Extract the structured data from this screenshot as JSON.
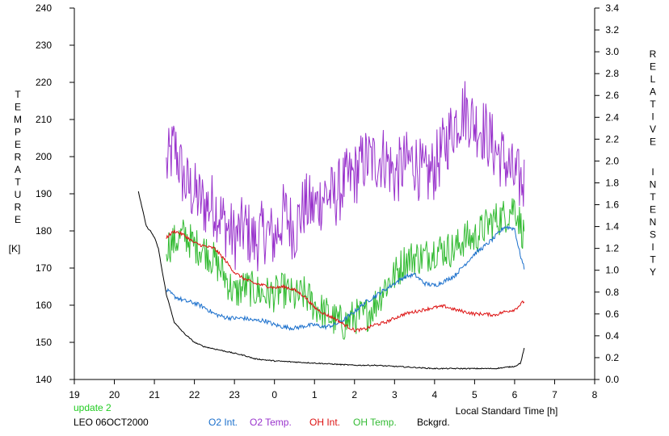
{
  "chart_data": {
    "type": "line",
    "x_axis": {
      "label": "Local Standard Time [h]",
      "range": [
        19,
        32
      ],
      "ticks": [
        19,
        20,
        21,
        22,
        23,
        24,
        25,
        26,
        27,
        28,
        29,
        30,
        31,
        32
      ],
      "tick_labels": [
        "19",
        "20",
        "21",
        "22",
        "23",
        "0",
        "1",
        "2",
        "3",
        "4",
        "5",
        "6",
        "7",
        "8"
      ]
    },
    "y_left": {
      "label_letters": [
        "T",
        "E",
        "M",
        "P",
        "E",
        "R",
        "A",
        "T",
        "U",
        "R",
        "E"
      ],
      "unit": "[K]",
      "range": [
        140,
        240
      ],
      "ticks": [
        140,
        150,
        160,
        170,
        180,
        190,
        200,
        210,
        220,
        230,
        240
      ]
    },
    "y_right": {
      "label_word1": [
        "R",
        "E",
        "L",
        "A",
        "T",
        "I",
        "V",
        "E"
      ],
      "label_word2": [
        "I",
        "N",
        "T",
        "E",
        "N",
        "S",
        "I",
        "T",
        "Y"
      ],
      "range": [
        0,
        3.4
      ],
      "ticks": [
        "0.0",
        "0.2",
        "0.4",
        "0.6",
        "0.8",
        "1.0",
        "1.2",
        "1.4",
        "1.6",
        "1.8",
        "2.0",
        "2.2",
        "2.4",
        "2.6",
        "2.8",
        "3.0",
        "3.2",
        "3.4"
      ]
    },
    "footer": {
      "update": "update 2",
      "station": "LEO 06OCT2000"
    },
    "legend": [
      "O2 Int.",
      "O2 Temp.",
      "OH Int.",
      "OH Temp.",
      "Bckgrd."
    ],
    "grid": false,
    "series": [
      {
        "name": "O2 Temp.",
        "axis": "left",
        "color": "#9933cc",
        "x": [
          21.3,
          21.5,
          21.75,
          22.0,
          22.25,
          22.5,
          22.75,
          23.0,
          23.25,
          23.5,
          23.75,
          24.0,
          24.25,
          24.5,
          24.75,
          25.0,
          25.25,
          25.5,
          25.75,
          26.0,
          26.25,
          26.5,
          26.75,
          27.0,
          27.25,
          27.5,
          27.75,
          28.0,
          28.25,
          28.5,
          28.75,
          29.0,
          29.25,
          29.5,
          29.75,
          30.0,
          30.25
        ],
        "y": [
          197,
          203,
          193,
          190,
          187,
          187,
          182,
          178,
          181,
          177,
          180,
          178,
          185,
          180,
          187,
          186,
          190,
          189,
          193,
          195,
          199,
          199,
          200,
          195,
          198,
          199,
          194,
          197,
          203,
          209,
          213,
          209,
          207,
          202,
          199,
          194,
          193
        ],
        "noise": 9
      },
      {
        "name": "OH Temp.",
        "axis": "left",
        "color": "#33bb33",
        "x": [
          21.3,
          21.5,
          21.75,
          22.0,
          22.25,
          22.5,
          22.75,
          23.0,
          23.25,
          23.5,
          23.75,
          24.0,
          24.25,
          24.5,
          24.75,
          25.0,
          25.25,
          25.5,
          25.75,
          26.0,
          26.25,
          26.5,
          26.75,
          27.0,
          27.25,
          27.5,
          27.75,
          28.0,
          28.25,
          28.5,
          28.75,
          29.0,
          29.25,
          29.5,
          29.75,
          30.0,
          30.25
        ],
        "y": [
          176,
          177,
          179,
          176,
          175,
          172,
          168,
          163,
          165,
          164,
          163,
          163,
          164,
          162,
          163,
          160,
          158,
          156,
          155,
          157,
          157,
          160,
          165,
          168,
          172,
          173,
          173,
          175,
          175,
          175,
          178,
          178,
          181,
          183,
          184,
          187,
          178
        ],
        "noise": 5
      },
      {
        "name": "O2 Int.",
        "axis": "right",
        "color": "#1a6fcc",
        "x": [
          21.3,
          21.5,
          21.75,
          22.0,
          22.25,
          22.5,
          22.75,
          23.0,
          23.25,
          23.5,
          23.75,
          24.0,
          24.25,
          24.5,
          24.75,
          25.0,
          25.25,
          25.5,
          25.75,
          26.0,
          26.25,
          26.5,
          26.75,
          27.0,
          27.25,
          27.5,
          27.75,
          28.0,
          28.25,
          28.5,
          28.75,
          29.0,
          29.25,
          29.5,
          29.75,
          30.0,
          30.1,
          30.25
        ],
        "y": [
          0.82,
          0.76,
          0.72,
          0.7,
          0.66,
          0.6,
          0.57,
          0.56,
          0.56,
          0.54,
          0.54,
          0.5,
          0.48,
          0.47,
          0.49,
          0.5,
          0.48,
          0.5,
          0.55,
          0.62,
          0.7,
          0.76,
          0.82,
          0.88,
          0.94,
          0.96,
          0.88,
          0.86,
          0.9,
          0.95,
          1.05,
          1.15,
          1.22,
          1.3,
          1.4,
          1.38,
          1.2,
          1.0
        ],
        "noise": 0.02
      },
      {
        "name": "OH Int.",
        "axis": "right",
        "color": "#dd1111",
        "x": [
          21.3,
          21.5,
          21.75,
          22.0,
          22.25,
          22.5,
          22.75,
          23.0,
          23.25,
          23.5,
          23.75,
          24.0,
          24.25,
          24.5,
          24.75,
          25.0,
          25.25,
          25.5,
          25.75,
          26.0,
          26.25,
          26.5,
          26.75,
          27.0,
          27.25,
          27.5,
          27.75,
          28.0,
          28.25,
          28.5,
          28.75,
          29.0,
          29.25,
          29.5,
          29.75,
          30.0,
          30.25
        ],
        "y": [
          1.3,
          1.36,
          1.32,
          1.25,
          1.22,
          1.2,
          1.1,
          0.98,
          0.92,
          0.88,
          0.86,
          0.84,
          0.85,
          0.82,
          0.76,
          0.66,
          0.6,
          0.56,
          0.5,
          0.45,
          0.46,
          0.5,
          0.52,
          0.56,
          0.6,
          0.62,
          0.64,
          0.66,
          0.67,
          0.64,
          0.62,
          0.6,
          0.6,
          0.59,
          0.62,
          0.64,
          0.72
        ],
        "noise": 0.015
      },
      {
        "name": "Bckgrd.",
        "axis": "right",
        "color": "#000000",
        "x": [
          20.6,
          20.7,
          20.8,
          20.9,
          21.0,
          21.1,
          21.2,
          21.3,
          21.5,
          21.75,
          22.0,
          22.25,
          22.5,
          22.75,
          23.0,
          23.25,
          23.5,
          23.75,
          24.0,
          24.5,
          25.0,
          25.5,
          26.0,
          26.5,
          27.0,
          27.5,
          28.0,
          28.5,
          29.0,
          29.5,
          29.75,
          30.0,
          30.15,
          30.25
        ],
        "y": [
          1.72,
          1.56,
          1.4,
          1.36,
          1.3,
          1.2,
          0.98,
          0.78,
          0.52,
          0.42,
          0.34,
          0.3,
          0.28,
          0.26,
          0.24,
          0.22,
          0.19,
          0.18,
          0.17,
          0.16,
          0.15,
          0.14,
          0.13,
          0.13,
          0.12,
          0.11,
          0.1,
          0.1,
          0.1,
          0.1,
          0.11,
          0.12,
          0.15,
          0.3
        ],
        "noise": 0.005
      }
    ]
  }
}
